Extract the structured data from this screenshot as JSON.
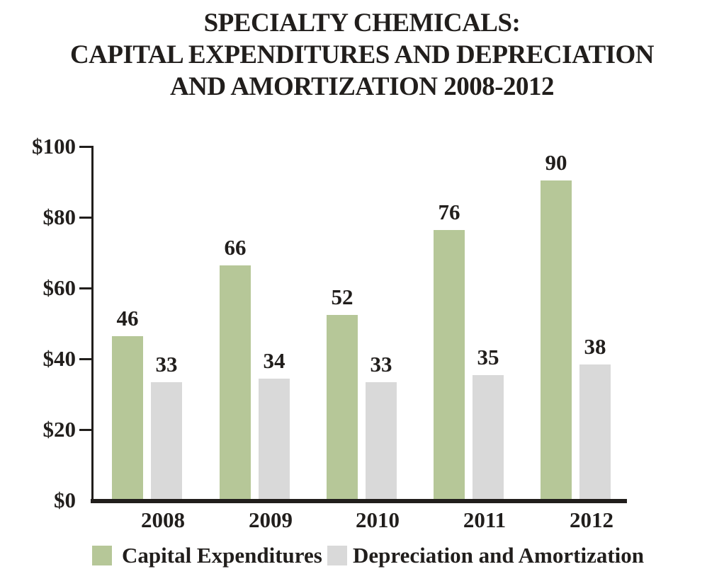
{
  "title": {
    "line1": "SPECIALTY CHEMICALS:",
    "line2": "CAPITAL EXPENDITURES AND DEPRECIATION",
    "line3": "AND AMORTIZATION 2008-2012"
  },
  "chart_data": {
    "type": "bar",
    "categories": [
      "2008",
      "2009",
      "2010",
      "2011",
      "2012"
    ],
    "series": [
      {
        "name": "Capital Expenditures",
        "color": "#b6c798",
        "values": [
          46,
          66,
          52,
          76,
          90
        ]
      },
      {
        "name": "Depreciation and Amortization",
        "color": "#d9d9d9",
        "values": [
          33,
          34,
          33,
          35,
          38
        ]
      }
    ],
    "title": "SPECIALTY CHEMICALS: CAPITAL EXPENDITURES AND DEPRECIATION AND AMORTIZATION 2008-2012",
    "xlabel": "",
    "ylabel": "",
    "ylim": [
      0,
      100
    ],
    "y_tick_labels": [
      "$100",
      "$80",
      "$60",
      "$40",
      "$20",
      "$0"
    ],
    "y_tick_values": [
      100,
      80,
      60,
      40,
      20,
      0
    ],
    "grid": false,
    "value_labels_shown": true,
    "legend_position": "bottom"
  },
  "legend": {
    "capital": "Capital Expenditures",
    "depreciation": "Depreciation and Amortization"
  },
  "colors": {
    "capital": "#b6c798",
    "depreciation": "#d9d9d9",
    "axis": "#211e1c",
    "text": "#211e1c",
    "background": "#ffffff"
  }
}
